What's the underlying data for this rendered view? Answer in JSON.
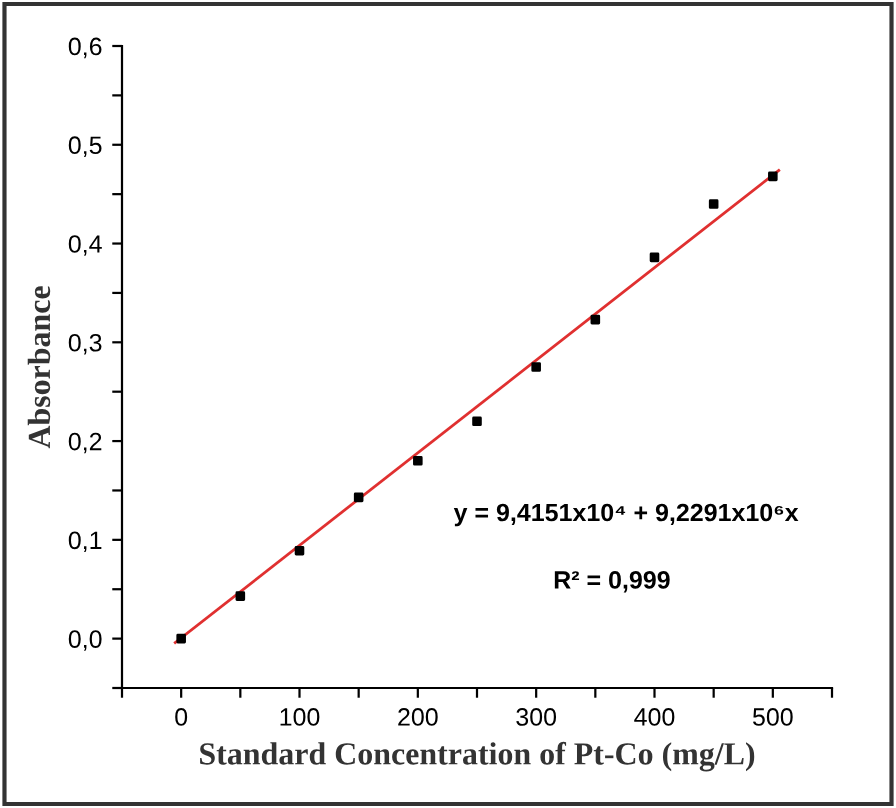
{
  "chart_data": {
    "type": "scatter",
    "xlabel": "Standard Concentration of Pt-Co (mg/L)",
    "ylabel": "Absorbance",
    "marker": "square",
    "grid": false,
    "legend": false,
    "series": [
      {
        "color": "#000000",
        "x": [
          0,
          50,
          100,
          150,
          200,
          250,
          300,
          350,
          400,
          450,
          500
        ],
        "values": [
          0.0,
          0.043,
          0.089,
          0.143,
          0.18,
          0.22,
          0.275,
          0.323,
          0.386,
          0.44,
          0.468
        ]
      },
      {
        "type": "line",
        "color": "#e03030",
        "marker": "none",
        "line_style": "solid",
        "x": [
          -5,
          505
        ],
        "values": [
          -0.004,
          0.474
        ]
      }
    ],
    "xlim": [
      -50,
      550
    ],
    "ylim": [
      -0.05,
      0.6
    ],
    "xticks": [
      0,
      100,
      200,
      300,
      400,
      500,
      {
        "value": -50,
        "label": null
      },
      {
        "value": 50,
        "label": null
      },
      {
        "value": 150,
        "label": null
      },
      {
        "value": 250,
        "label": null
      },
      {
        "value": 350,
        "label": null
      },
      {
        "value": 450,
        "label": null
      },
      {
        "value": 550,
        "label": null
      }
    ],
    "yticks": [
      {
        "value": 0.0,
        "label": "0,0"
      },
      {
        "value": 0.1,
        "label": "0,1"
      },
      {
        "value": 0.2,
        "label": "0,2"
      },
      {
        "value": 0.3,
        "label": "0,3"
      },
      {
        "value": 0.4,
        "label": "0,4"
      },
      {
        "value": 0.5,
        "label": "0,5"
      },
      {
        "value": 0.6,
        "label": "0,6"
      },
      {
        "value": 0.05,
        "label": null
      },
      {
        "value": 0.15,
        "label": null
      },
      {
        "value": 0.25,
        "label": null
      },
      {
        "value": 0.35,
        "label": null
      },
      {
        "value": 0.45,
        "label": null
      },
      {
        "value": 0.55,
        "label": null
      },
      {
        "value": -0.05,
        "label": null
      }
    ],
    "annotations": [
      "y = 9,4151x10⁴ + 9,2291x10⁶x",
      "R² = 0,999"
    ]
  }
}
